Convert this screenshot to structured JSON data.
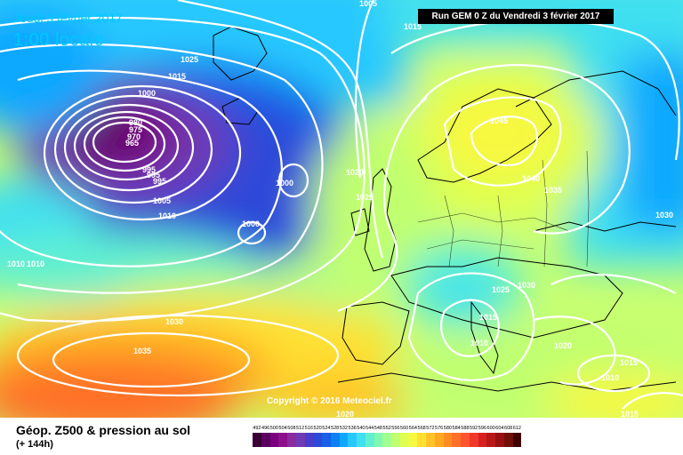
{
  "header": {
    "date": "Jeudi 9 février 2017",
    "time": "1:00 locale",
    "run": "Run GEM 0 Z du Vendredi 3 février 2017"
  },
  "copyright": "Copyright © 2016 Meteociel.fr",
  "legend": {
    "title": "Géop. Z500 & pression au sol",
    "subtitle": "(+ 144h)",
    "scale_values": [
      "492",
      "496",
      "500",
      "504",
      "508",
      "512",
      "516",
      "520",
      "524",
      "528",
      "532",
      "536",
      "540",
      "544",
      "548",
      "552",
      "556",
      "560",
      "564",
      "568",
      "572",
      "576",
      "580",
      "584",
      "588",
      "592",
      "596",
      "600",
      "604",
      "608",
      "612"
    ],
    "scale_colors": [
      "#3b0035",
      "#5a0060",
      "#7a0080",
      "#8e0f8a",
      "#8a2ba0",
      "#6e3bb5",
      "#4a3cc8",
      "#2e48d8",
      "#1860e8",
      "#0c80f5",
      "#10a8ff",
      "#28c8ff",
      "#40e0f0",
      "#60f0d0",
      "#80f8b0",
      "#a0ff90",
      "#c0ff70",
      "#e0ff50",
      "#f8f840",
      "#ffe030",
      "#ffc428",
      "#ffa820",
      "#ff8c20",
      "#ff7028",
      "#ff5430",
      "#f03828",
      "#d82020",
      "#b81818",
      "#981010",
      "#701008",
      "#400000"
    ]
  },
  "isobar_labels": [
    {
      "text": "1005"
    },
    {
      "text": "1015"
    },
    {
      "text": "1025"
    },
    {
      "text": "1015"
    },
    {
      "text": "1000"
    },
    {
      "text": "980"
    },
    {
      "text": "975"
    },
    {
      "text": "970"
    },
    {
      "text": "965"
    },
    {
      "text": "995"
    },
    {
      "text": "995"
    },
    {
      "text": "995"
    },
    {
      "text": "1005"
    },
    {
      "text": "1010"
    },
    {
      "text": "1000"
    },
    {
      "text": "1000"
    },
    {
      "text": "1020"
    },
    {
      "text": "1025"
    },
    {
      "text": "1045"
    },
    {
      "text": "1040"
    },
    {
      "text": "1035"
    },
    {
      "text": "1030"
    },
    {
      "text": "1025"
    },
    {
      "text": "1030"
    },
    {
      "text": "1015"
    },
    {
      "text": "1010"
    },
    {
      "text": "1020"
    },
    {
      "text": "1015"
    },
    {
      "text": "1010"
    },
    {
      "text": "1030"
    },
    {
      "text": "1035"
    },
    {
      "text": "1020"
    },
    {
      "text": "1015"
    },
    {
      "text": "1010"
    },
    {
      "text": "1010"
    }
  ]
}
